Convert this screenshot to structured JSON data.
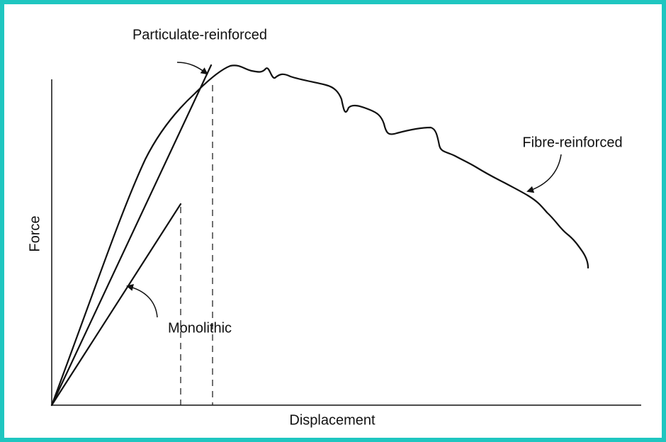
{
  "labels": {
    "particulate": "Particulate-reinforced",
    "fibre": "Fibre-reinforced",
    "monolithic": "Monolithic"
  },
  "axes": {
    "y": "Force",
    "x": "Displacement"
  }
}
